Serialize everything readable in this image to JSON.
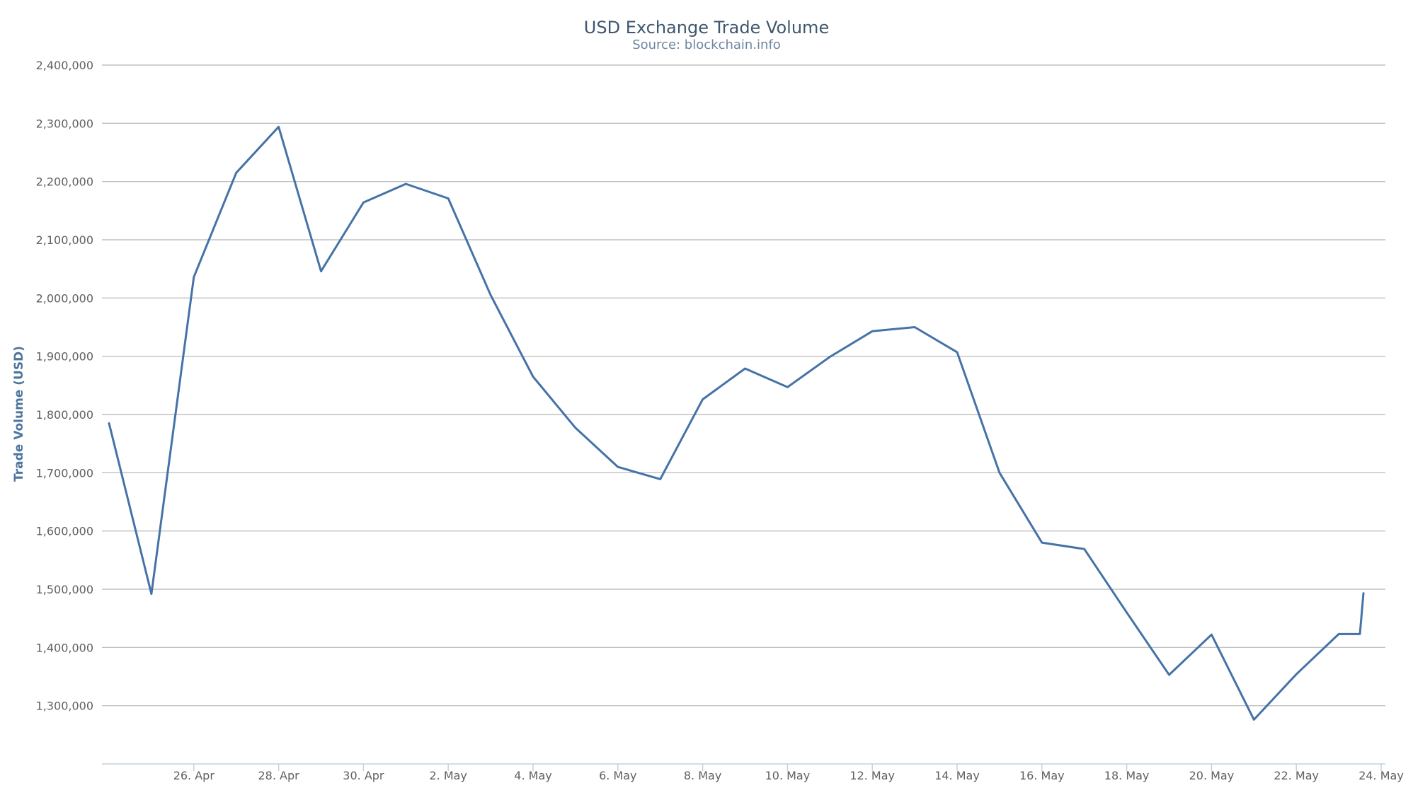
{
  "chart_data": {
    "type": "line",
    "title": "USD Exchange Trade Volume",
    "subtitle": "Source: blockchain.info",
    "xlabel": "",
    "ylabel": "Trade Volume (USD)",
    "ylim": [
      1200000,
      2400000
    ],
    "yticks": [
      1300000,
      1400000,
      1500000,
      1600000,
      1700000,
      1800000,
      1900000,
      2000000,
      2100000,
      2200000,
      2300000,
      2400000
    ],
    "ytick_labels": [
      "1,300,000",
      "1,400,000",
      "1,500,000",
      "1,600,000",
      "1,700,000",
      "1,800,000",
      "1,900,000",
      "2,000,000",
      "2,100,000",
      "2,200,000",
      "2,300,000",
      "2,400,000"
    ],
    "xlim": [
      "2016-04-24",
      "2016-05-24"
    ],
    "xticks": [
      "2016-04-26",
      "2016-04-28",
      "2016-04-30",
      "2016-05-02",
      "2016-05-04",
      "2016-05-06",
      "2016-05-08",
      "2016-05-10",
      "2016-05-12",
      "2016-05-14",
      "2016-05-16",
      "2016-05-18",
      "2016-05-20",
      "2016-05-22",
      "2016-05-24"
    ],
    "xtick_labels": [
      "26. Apr",
      "28. Apr",
      "30. Apr",
      "2. May",
      "4. May",
      "6. May",
      "8. May",
      "10. May",
      "12. May",
      "14. May",
      "16. May",
      "18. May",
      "20. May",
      "22. May",
      "24. May"
    ],
    "grid": true,
    "legend": "none",
    "color": "#4572a7",
    "series": [
      {
        "x": [
          "2016-04-24",
          "2016-04-25",
          "2016-04-26",
          "2016-04-27",
          "2016-04-28",
          "2016-04-29",
          "2016-04-30",
          "2016-05-01",
          "2016-05-02",
          "2016-05-03",
          "2016-05-04",
          "2016-05-05",
          "2016-05-06",
          "2016-05-07",
          "2016-05-08",
          "2016-05-09",
          "2016-05-10",
          "2016-05-11",
          "2016-05-12",
          "2016-05-13",
          "2016-05-14",
          "2016-05-15",
          "2016-05-16",
          "2016-05-17",
          "2016-05-18",
          "2016-05-19",
          "2016-05-20",
          "2016-05-21",
          "2016-05-22",
          "2016-05-23",
          "2016-05-23",
          "2016-05-23"
        ],
        "x_offset_hours": [
          0,
          0,
          0,
          0,
          0,
          0,
          0,
          0,
          0,
          0,
          0,
          0,
          0,
          0,
          0,
          0,
          0,
          0,
          0,
          0,
          0,
          0,
          0,
          0,
          0,
          0,
          0,
          0,
          0,
          0,
          12,
          14
        ],
        "values": [
          1785000,
          1492000,
          2036000,
          2215000,
          2294000,
          2046000,
          2164000,
          2196000,
          2171000,
          2005000,
          1865000,
          1777000,
          1710000,
          1689000,
          1826000,
          1879000,
          1847000,
          1899000,
          1943000,
          1950000,
          1907000,
          1700000,
          1580000,
          1569000,
          1460000,
          1353000,
          1422000,
          1276000,
          1354000,
          1423000,
          1423000,
          1493000
        ]
      }
    ]
  }
}
